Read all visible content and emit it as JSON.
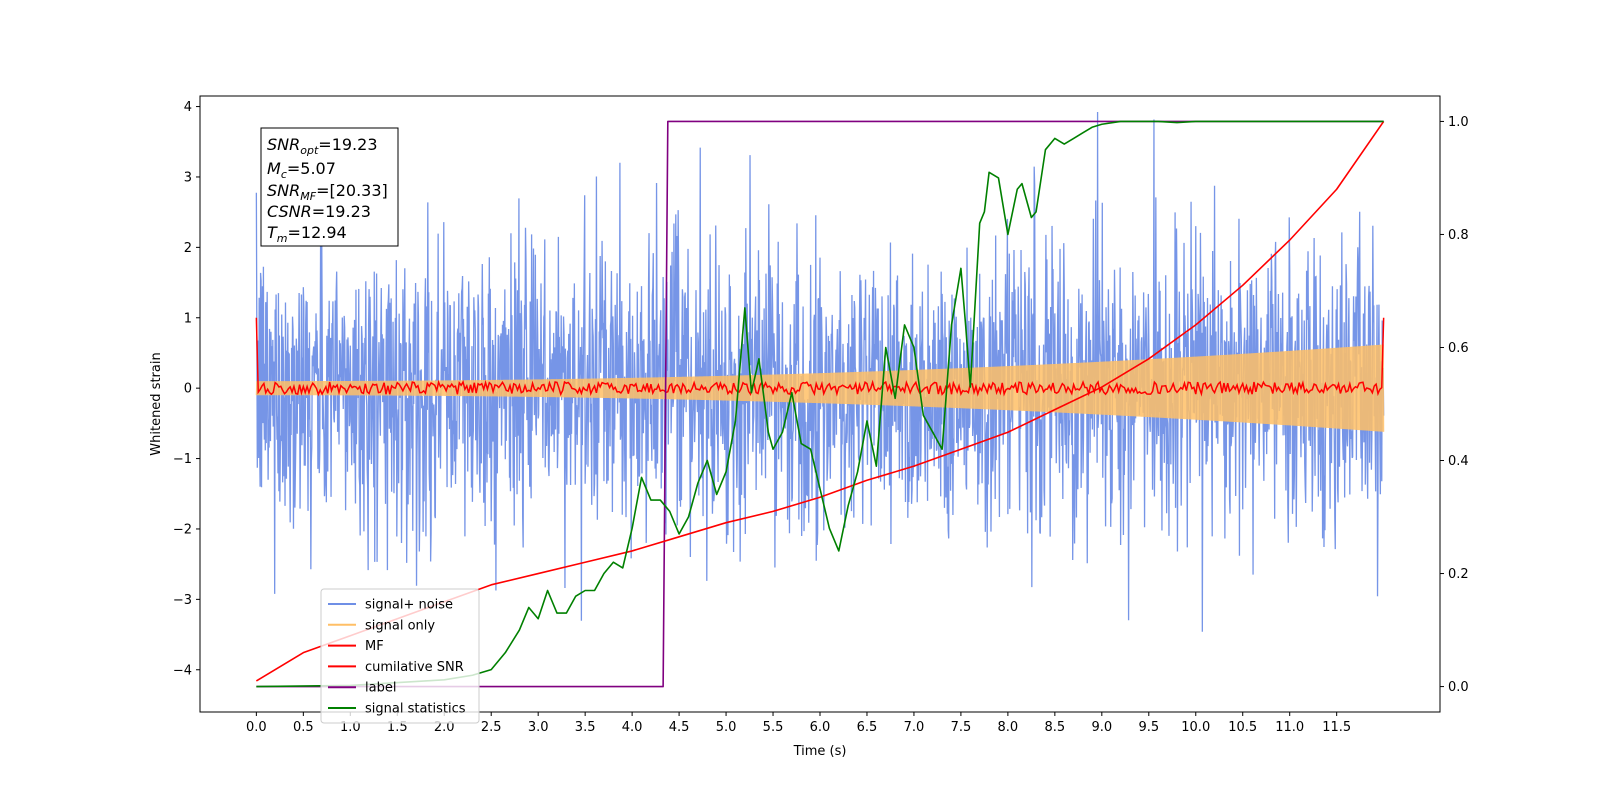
{
  "chart_data": {
    "type": "line",
    "xlabel": "Time (s)",
    "ylabel": "Whitened strain",
    "xlim": [
      -0.6,
      12.6
    ],
    "ylim": [
      -4.6,
      4.15
    ],
    "y2lim": [
      -0.045,
      1.045
    ],
    "xticks": [
      "0.0",
      "0.5",
      "1.0",
      "1.5",
      "2.0",
      "2.5",
      "3.0",
      "3.5",
      "4.0",
      "4.5",
      "5.0",
      "5.5",
      "6.0",
      "6.5",
      "7.0",
      "7.5",
      "8.0",
      "8.5",
      "9.0",
      "9.5",
      "10.0",
      "10.5",
      "11.0",
      "11.5"
    ],
    "yticks": [
      "−4",
      "−3",
      "−2",
      "−1",
      "0",
      "1",
      "2",
      "3",
      "4"
    ],
    "y2ticks": [
      "0.0",
      "0.2",
      "0.4",
      "0.6",
      "0.8",
      "1.0"
    ],
    "grid": false,
    "legend_placement": "lower-left",
    "annotation": {
      "snr_opt": {
        "symbol": "SNR",
        "sub": "opt",
        "value": "=19.23"
      },
      "mc": {
        "symbol": "M",
        "sub": "c",
        "value": "=5.07"
      },
      "snr_mf": {
        "symbol": "SNR",
        "sub": "MF",
        "value": "=[20.33]"
      },
      "csnr": {
        "symbol": "CSNR",
        "sub": "",
        "value": "=19.23"
      },
      "tm": {
        "symbol": "T",
        "sub": "m",
        "value": "=12.94"
      }
    },
    "series": [
      {
        "name": "signal+ noise",
        "color": "#6f8fe6",
        "axis": "left",
        "description_kind": "noisy",
        "sigma": 1.0,
        "x_range": [
          0,
          12.0
        ]
      },
      {
        "name": "signal only",
        "color": "#ffbf66",
        "axis": "left",
        "envelope_start": 0.1,
        "envelope_end": 0.62,
        "x_range": [
          0,
          12.0
        ]
      },
      {
        "name": "MF",
        "color": "#ff0000",
        "axis": "left",
        "x_range": [
          0,
          12.0
        ],
        "edge_value": 1.0,
        "ripple": 0.04
      },
      {
        "name": "cumilative SNR",
        "color": "#ff0000",
        "axis": "right",
        "x": [
          0,
          0.5,
          1,
          1.5,
          2,
          2.5,
          3,
          3.5,
          4,
          4.5,
          5,
          5.5,
          6,
          6.5,
          7,
          7.5,
          8,
          8.5,
          9,
          9.5,
          10,
          10.5,
          11,
          11.5,
          12.0
        ],
        "values": [
          0.01,
          0.06,
          0.09,
          0.12,
          0.15,
          0.18,
          0.2,
          0.22,
          0.24,
          0.265,
          0.29,
          0.31,
          0.335,
          0.365,
          0.39,
          0.42,
          0.45,
          0.49,
          0.53,
          0.58,
          0.64,
          0.71,
          0.79,
          0.88,
          1.0
        ]
      },
      {
        "name": "label",
        "color": "#800080",
        "axis": "right",
        "x": [
          0,
          4.33,
          4.38,
          12.0
        ],
        "values": [
          0,
          0,
          1,
          1
        ]
      },
      {
        "name": "signal statistics",
        "color": "#008000",
        "axis": "right",
        "x": [
          0,
          1.0,
          2.0,
          2.3,
          2.5,
          2.65,
          2.8,
          2.9,
          3.0,
          3.1,
          3.2,
          3.3,
          3.4,
          3.5,
          3.6,
          3.7,
          3.8,
          3.9,
          4.0,
          4.1,
          4.2,
          4.3,
          4.4,
          4.5,
          4.6,
          4.7,
          4.8,
          4.9,
          5.0,
          5.1,
          5.2,
          5.27,
          5.35,
          5.45,
          5.5,
          5.6,
          5.7,
          5.8,
          5.9,
          6.0,
          6.1,
          6.2,
          6.3,
          6.4,
          6.5,
          6.6,
          6.7,
          6.8,
          6.9,
          7.0,
          7.1,
          7.2,
          7.3,
          7.4,
          7.5,
          7.55,
          7.6,
          7.7,
          7.75,
          7.8,
          7.9,
          8.0,
          8.1,
          8.15,
          8.25,
          8.3,
          8.4,
          8.5,
          8.6,
          8.7,
          8.8,
          8.9,
          9.0,
          9.2,
          9.4,
          9.6,
          9.8,
          10.0,
          10.5,
          11.0,
          11.5,
          12.0
        ],
        "values": [
          0.0,
          0.002,
          0.012,
          0.02,
          0.03,
          0.06,
          0.1,
          0.14,
          0.12,
          0.17,
          0.13,
          0.13,
          0.16,
          0.17,
          0.17,
          0.2,
          0.22,
          0.21,
          0.28,
          0.37,
          0.33,
          0.33,
          0.31,
          0.27,
          0.3,
          0.36,
          0.4,
          0.34,
          0.38,
          0.47,
          0.67,
          0.52,
          0.58,
          0.45,
          0.42,
          0.45,
          0.52,
          0.43,
          0.42,
          0.35,
          0.28,
          0.24,
          0.32,
          0.38,
          0.47,
          0.39,
          0.6,
          0.51,
          0.64,
          0.6,
          0.48,
          0.45,
          0.42,
          0.64,
          0.74,
          0.64,
          0.53,
          0.82,
          0.84,
          0.91,
          0.9,
          0.8,
          0.88,
          0.89,
          0.83,
          0.84,
          0.95,
          0.97,
          0.96,
          0.97,
          0.98,
          0.99,
          0.995,
          1.0,
          1.0,
          1.0,
          0.998,
          1.0,
          1.0,
          1.0,
          1.0,
          1.0
        ]
      }
    ]
  }
}
